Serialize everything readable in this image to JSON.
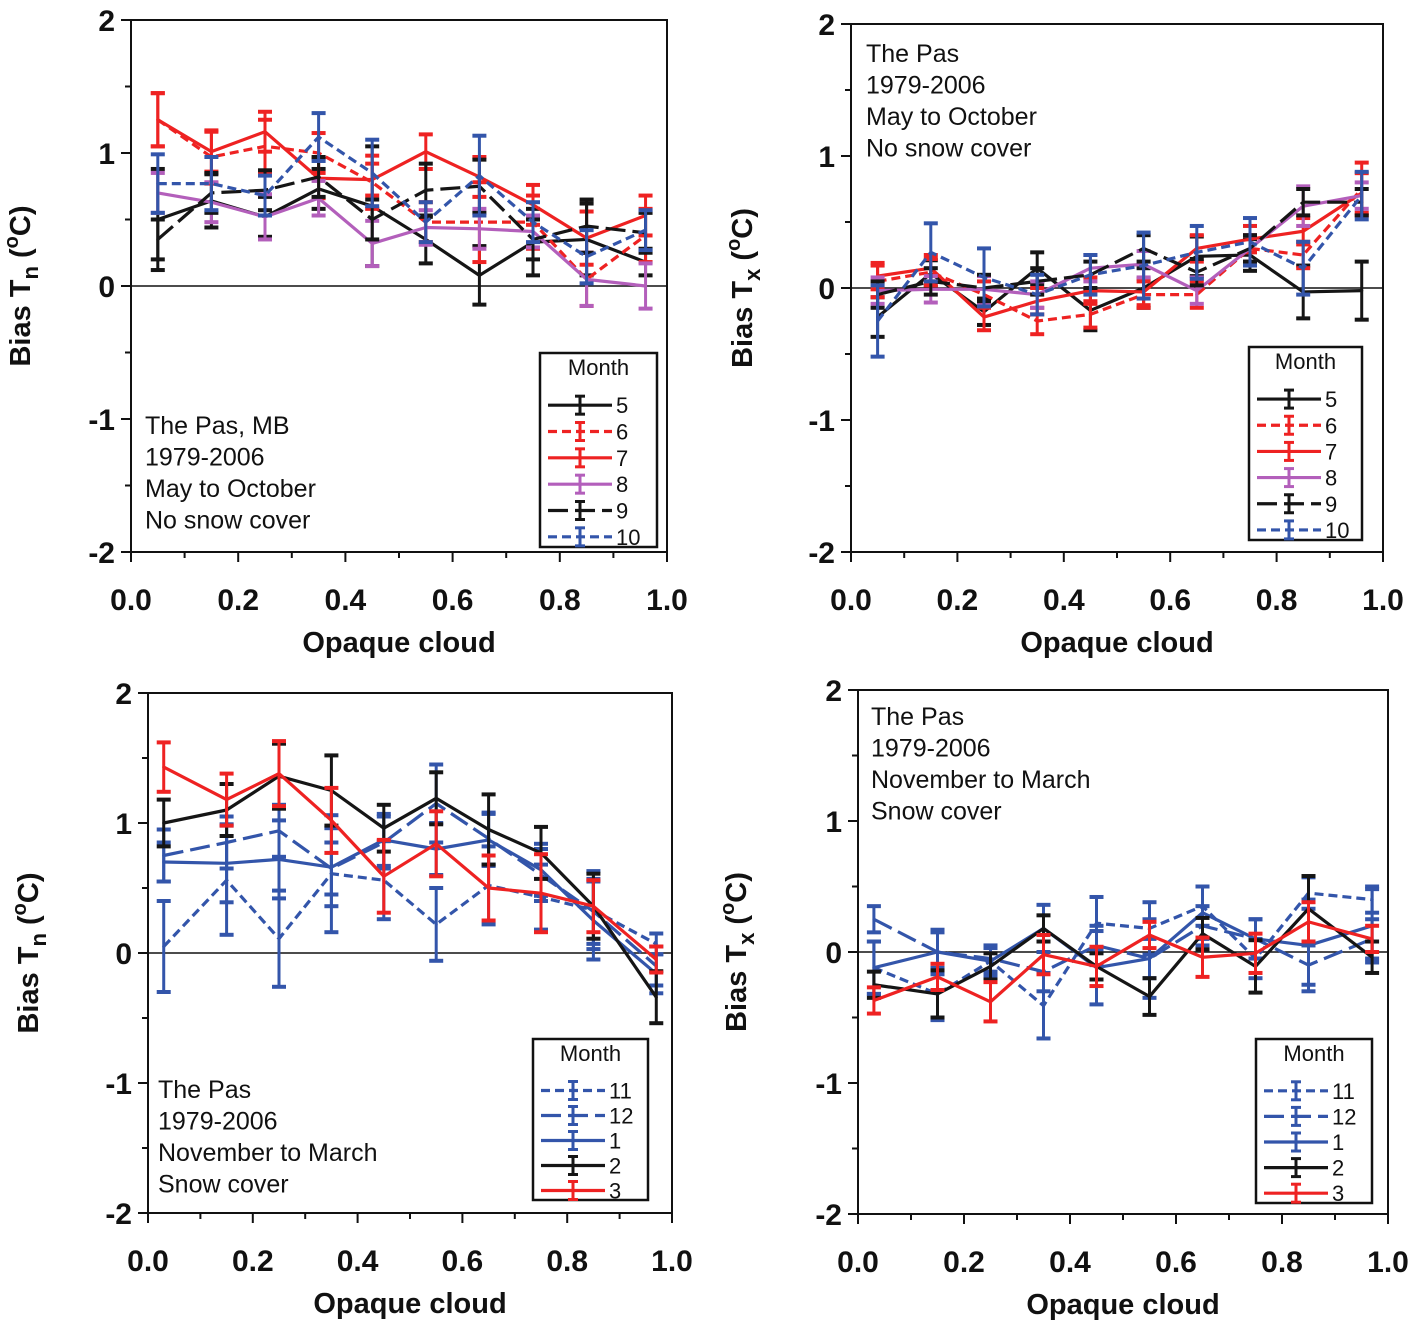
{
  "colors": {
    "black": "#151515",
    "red": "#ee2222",
    "blue": "#3355aa",
    "purple": "#b35fbb"
  },
  "chart_data": [
    {
      "type": "line",
      "xlabel": "Opaque cloud",
      "ylabel": {
        "main": "Bias T",
        "sub": "n",
        "open": " (",
        "sup": "o",
        "close": "C)"
      },
      "xlim": [
        0,
        1
      ],
      "ylim": [
        -2,
        2
      ],
      "xticks": [
        "0.0",
        "0.2",
        "0.4",
        "0.6",
        "0.8",
        "1.0"
      ],
      "yticks": [
        "-2",
        "-1",
        "0",
        "1",
        "2"
      ],
      "annotation": [
        "The Pas, MB",
        "1979-2006",
        "May to October",
        "No snow cover"
      ],
      "legend": {
        "title": "Month",
        "placement": "bottom-right"
      },
      "x": [
        0.05,
        0.15,
        0.25,
        0.35,
        0.45,
        0.55,
        0.65,
        0.75,
        0.85,
        0.96
      ],
      "series": [
        {
          "name": "5",
          "color": "black",
          "dash": "solid",
          "values": [
            0.5,
            0.64,
            0.52,
            0.73,
            0.6,
            0.35,
            0.08,
            0.33,
            0.35,
            0.18
          ],
          "err": [
            0.38,
            0.2,
            0.15,
            0.15,
            0.45,
            0.18,
            0.22,
            0.25,
            0.27,
            0.1
          ]
        },
        {
          "name": "6",
          "color": "red",
          "dash": "short",
          "values": [
            1.25,
            0.97,
            1.05,
            1.0,
            0.78,
            0.48,
            0.48,
            0.48,
            0.05,
            0.38
          ],
          "err": [
            0.2,
            0.2,
            0.2,
            0.15,
            0.2,
            0.15,
            0.3,
            0.2,
            0.2,
            0.2
          ]
        },
        {
          "name": "7",
          "color": "red",
          "dash": "solid",
          "values": [
            1.25,
            1.01,
            1.16,
            0.81,
            0.8,
            1.01,
            0.82,
            0.61,
            0.36,
            0.53
          ],
          "err": [
            0.2,
            0.15,
            0.15,
            0.15,
            0.12,
            0.13,
            0.15,
            0.15,
            0.2,
            0.15
          ]
        },
        {
          "name": "8",
          "color": "purple",
          "dash": "solid",
          "values": [
            0.7,
            0.63,
            0.52,
            0.66,
            0.32,
            0.44,
            0.43,
            0.41,
            0.05,
            0.0
          ],
          "err": [
            0.15,
            0.15,
            0.17,
            0.13,
            0.17,
            0.13,
            0.15,
            0.12,
            0.2,
            0.17
          ]
        },
        {
          "name": "9",
          "color": "black",
          "dash": "long",
          "values": [
            0.35,
            0.7,
            0.72,
            0.82,
            0.5,
            0.72,
            0.75,
            0.35,
            0.45,
            0.4
          ],
          "err": [
            0.15,
            0.15,
            0.15,
            0.15,
            0.15,
            0.2,
            0.2,
            0.15,
            0.2,
            0.15
          ]
        },
        {
          "name": "10",
          "color": "blue",
          "dash": "short",
          "values": [
            0.77,
            0.77,
            0.68,
            1.12,
            0.85,
            0.48,
            0.83,
            0.48,
            0.22,
            0.42
          ],
          "err": [
            0.22,
            0.2,
            0.15,
            0.18,
            0.25,
            0.15,
            0.3,
            0.15,
            0.2,
            0.15
          ]
        }
      ]
    },
    {
      "type": "line",
      "xlabel": "Opaque cloud",
      "ylabel": {
        "main": "Bias T",
        "sub": "x",
        "open": " (",
        "sup": "o",
        "close": "C)"
      },
      "xlim": [
        0,
        1
      ],
      "ylim": [
        -2,
        2
      ],
      "xticks": [
        "0.0",
        "0.2",
        "0.4",
        "0.6",
        "0.8",
        "1.0"
      ],
      "yticks": [
        "-2",
        "-1",
        "0",
        "1",
        "2"
      ],
      "annotation": [
        "The Pas",
        "1979-2006",
        "May to October",
        "No snow cover"
      ],
      "legend": {
        "title": "Month",
        "placement": "bottom-right"
      },
      "x": [
        0.05,
        0.15,
        0.25,
        0.35,
        0.45,
        0.55,
        0.65,
        0.75,
        0.85,
        0.96
      ],
      "series": [
        {
          "name": "5",
          "color": "black",
          "dash": "solid",
          "values": [
            -0.22,
            0.11,
            -0.18,
            0.15,
            -0.17,
            0.0,
            0.24,
            0.25,
            -0.03,
            -0.02
          ],
          "err": [
            0.15,
            0.1,
            0.1,
            0.12,
            0.15,
            0.15,
            0.15,
            0.12,
            0.2,
            0.22
          ]
        },
        {
          "name": "6",
          "color": "red",
          "dash": "short",
          "values": [
            0.05,
            0.12,
            -0.05,
            -0.25,
            -0.2,
            -0.05,
            -0.05,
            0.3,
            0.25,
            0.75
          ],
          "err": [
            0.12,
            0.1,
            0.1,
            0.1,
            0.1,
            0.1,
            0.1,
            0.1,
            0.1,
            0.2
          ]
        },
        {
          "name": "7",
          "color": "red",
          "dash": "solid",
          "values": [
            0.09,
            0.15,
            -0.22,
            -0.1,
            -0.02,
            -0.03,
            0.3,
            0.37,
            0.43,
            0.72
          ],
          "err": [
            0.1,
            0.1,
            0.1,
            0.1,
            0.1,
            0.1,
            0.1,
            0.1,
            0.1,
            0.15
          ]
        },
        {
          "name": "8",
          "color": "purple",
          "dash": "solid",
          "values": [
            -0.02,
            -0.01,
            -0.01,
            -0.05,
            0.15,
            0.18,
            -0.02,
            0.3,
            0.62,
            0.7
          ],
          "err": [
            0.1,
            0.1,
            0.1,
            0.1,
            0.1,
            0.1,
            0.1,
            0.1,
            0.15,
            0.1
          ]
        },
        {
          "name": "9",
          "color": "black",
          "dash": "long",
          "values": [
            -0.05,
            0.05,
            0.0,
            0.05,
            0.1,
            0.3,
            0.12,
            0.3,
            0.65,
            0.65
          ],
          "err": [
            0.1,
            0.1,
            0.1,
            0.1,
            0.1,
            0.1,
            0.1,
            0.1,
            0.1,
            0.1
          ]
        },
        {
          "name": "10",
          "color": "blue",
          "dash": "short",
          "values": [
            -0.25,
            0.27,
            0.08,
            -0.05,
            0.1,
            0.17,
            0.27,
            0.35,
            0.15,
            0.7
          ],
          "err": [
            0.27,
            0.22,
            0.22,
            0.15,
            0.15,
            0.25,
            0.2,
            0.18,
            0.2,
            0.18
          ]
        }
      ]
    },
    {
      "type": "line",
      "xlabel": "Opaque cloud",
      "ylabel": {
        "main": "Bias T",
        "sub": "n",
        "open": " (",
        "sup": "o",
        "close": "C)"
      },
      "xlim": [
        0,
        1
      ],
      "ylim": [
        -2,
        2
      ],
      "xticks": [
        "0.0",
        "0.2",
        "0.4",
        "0.6",
        "0.8",
        "1.0"
      ],
      "yticks": [
        "-2",
        "-1",
        "0",
        "1",
        "2"
      ],
      "annotation": [
        "The Pas",
        "1979-2006",
        "November to March",
        "Snow cover"
      ],
      "legend": {
        "title": "Month",
        "placement": "bottom-right"
      },
      "x": [
        0.03,
        0.15,
        0.25,
        0.35,
        0.45,
        0.55,
        0.65,
        0.75,
        0.85,
        0.97
      ],
      "series": [
        {
          "name": "11",
          "color": "blue",
          "dash": "short",
          "values": [
            0.05,
            0.56,
            0.11,
            0.61,
            0.56,
            0.22,
            0.52,
            0.43,
            0.33,
            0.07
          ],
          "err": [
            0.35,
            0.42,
            0.37,
            0.45,
            0.3,
            0.28,
            0.3,
            0.25,
            0.3,
            0.08
          ]
        },
        {
          "name": "12",
          "color": "blue",
          "dash": "long",
          "values": [
            0.75,
            0.85,
            0.94,
            0.65,
            0.85,
            1.15,
            0.88,
            0.6,
            0.32,
            -0.1
          ],
          "err": [
            0.2,
            0.2,
            0.2,
            0.2,
            0.2,
            0.3,
            0.2,
            0.2,
            0.25,
            0.15
          ]
        },
        {
          "name": "1",
          "color": "blue",
          "dash": "solid",
          "values": [
            0.7,
            0.69,
            0.72,
            0.66,
            0.87,
            0.8,
            0.87,
            0.64,
            0.25,
            -0.16
          ],
          "err": [
            0.15,
            0.3,
            0.3,
            0.3,
            0.2,
            0.2,
            0.2,
            0.2,
            0.3,
            0.15
          ]
        },
        {
          "name": "2",
          "color": "black",
          "dash": "solid",
          "values": [
            1.0,
            1.1,
            1.36,
            1.25,
            0.96,
            1.19,
            0.95,
            0.77,
            0.36,
            -0.34
          ],
          "err": [
            0.18,
            0.2,
            0.25,
            0.27,
            0.18,
            0.2,
            0.27,
            0.2,
            0.25,
            0.2
          ]
        },
        {
          "name": "3",
          "color": "red",
          "dash": "solid",
          "values": [
            1.43,
            1.18,
            1.38,
            1.02,
            0.59,
            0.84,
            0.5,
            0.46,
            0.36,
            -0.05
          ],
          "err": [
            0.19,
            0.2,
            0.25,
            0.25,
            0.28,
            0.25,
            0.25,
            0.3,
            0.2,
            0.1
          ]
        }
      ]
    },
    {
      "type": "line",
      "xlabel": "Opaque cloud",
      "ylabel": {
        "main": "Bias T",
        "sub": "x",
        "open": " (",
        "sup": "o",
        "close": "C)"
      },
      "xlim": [
        0,
        1
      ],
      "ylim": [
        -2,
        2
      ],
      "xticks": [
        "0.0",
        "0.2",
        "0.4",
        "0.6",
        "0.8",
        "1.0"
      ],
      "yticks": [
        "-2",
        "-1",
        "0",
        "1",
        "2"
      ],
      "annotation": [
        "The Pas",
        "1979-2006",
        "November to March",
        "Snow cover"
      ],
      "legend": {
        "title": "Month",
        "placement": "bottom-right"
      },
      "x": [
        0.03,
        0.15,
        0.25,
        0.35,
        0.45,
        0.55,
        0.65,
        0.75,
        0.85,
        0.97
      ],
      "series": [
        {
          "name": "11",
          "color": "blue",
          "dash": "short",
          "values": [
            -0.12,
            -0.32,
            -0.07,
            -0.41,
            0.22,
            0.18,
            0.35,
            -0.05,
            0.45,
            0.4
          ],
          "err": [
            0.2,
            0.2,
            0.1,
            0.25,
            0.2,
            0.2,
            0.15,
            0.15,
            0.12,
            0.1
          ]
        },
        {
          "name": "12",
          "color": "blue",
          "dash": "long",
          "values": [
            0.25,
            0.0,
            -0.05,
            -0.15,
            0.05,
            -0.05,
            0.2,
            0.1,
            -0.1,
            0.1
          ],
          "err": [
            0.1,
            0.15,
            0.1,
            0.15,
            0.15,
            0.15,
            0.15,
            0.15,
            0.15,
            0.15
          ]
        },
        {
          "name": "1",
          "color": "blue",
          "dash": "solid",
          "values": [
            -0.12,
            0.0,
            -0.07,
            0.18,
            -0.12,
            -0.05,
            0.3,
            0.1,
            0.05,
            0.2
          ],
          "err": [
            0.2,
            0.17,
            0.12,
            0.18,
            0.28,
            0.3,
            0.2,
            0.15,
            0.35,
            0.28
          ]
        },
        {
          "name": "2",
          "color": "black",
          "dash": "solid",
          "values": [
            -0.25,
            -0.32,
            -0.11,
            0.18,
            -0.11,
            -0.34,
            0.14,
            -0.11,
            0.33,
            -0.04
          ],
          "err": [
            0.1,
            0.18,
            0.1,
            0.1,
            0.1,
            0.14,
            0.12,
            0.2,
            0.25,
            0.12
          ]
        },
        {
          "name": "3",
          "color": "red",
          "dash": "solid",
          "values": [
            -0.37,
            -0.19,
            -0.38,
            -0.02,
            -0.11,
            0.13,
            -0.04,
            -0.01,
            0.23,
            0.1
          ],
          "err": [
            0.1,
            0.1,
            0.15,
            0.15,
            0.15,
            0.1,
            0.15,
            0.15,
            0.15,
            0.1
          ]
        }
      ]
    }
  ]
}
